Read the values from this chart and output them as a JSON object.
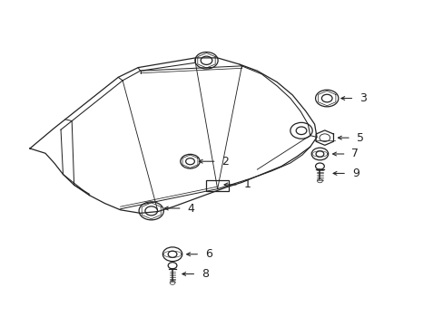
{
  "bg_color": "#ffffff",
  "line_color": "#222222",
  "fig_width": 4.89,
  "fig_height": 3.6,
  "dpi": 100,
  "font_size": 9,
  "lw": 0.9
}
